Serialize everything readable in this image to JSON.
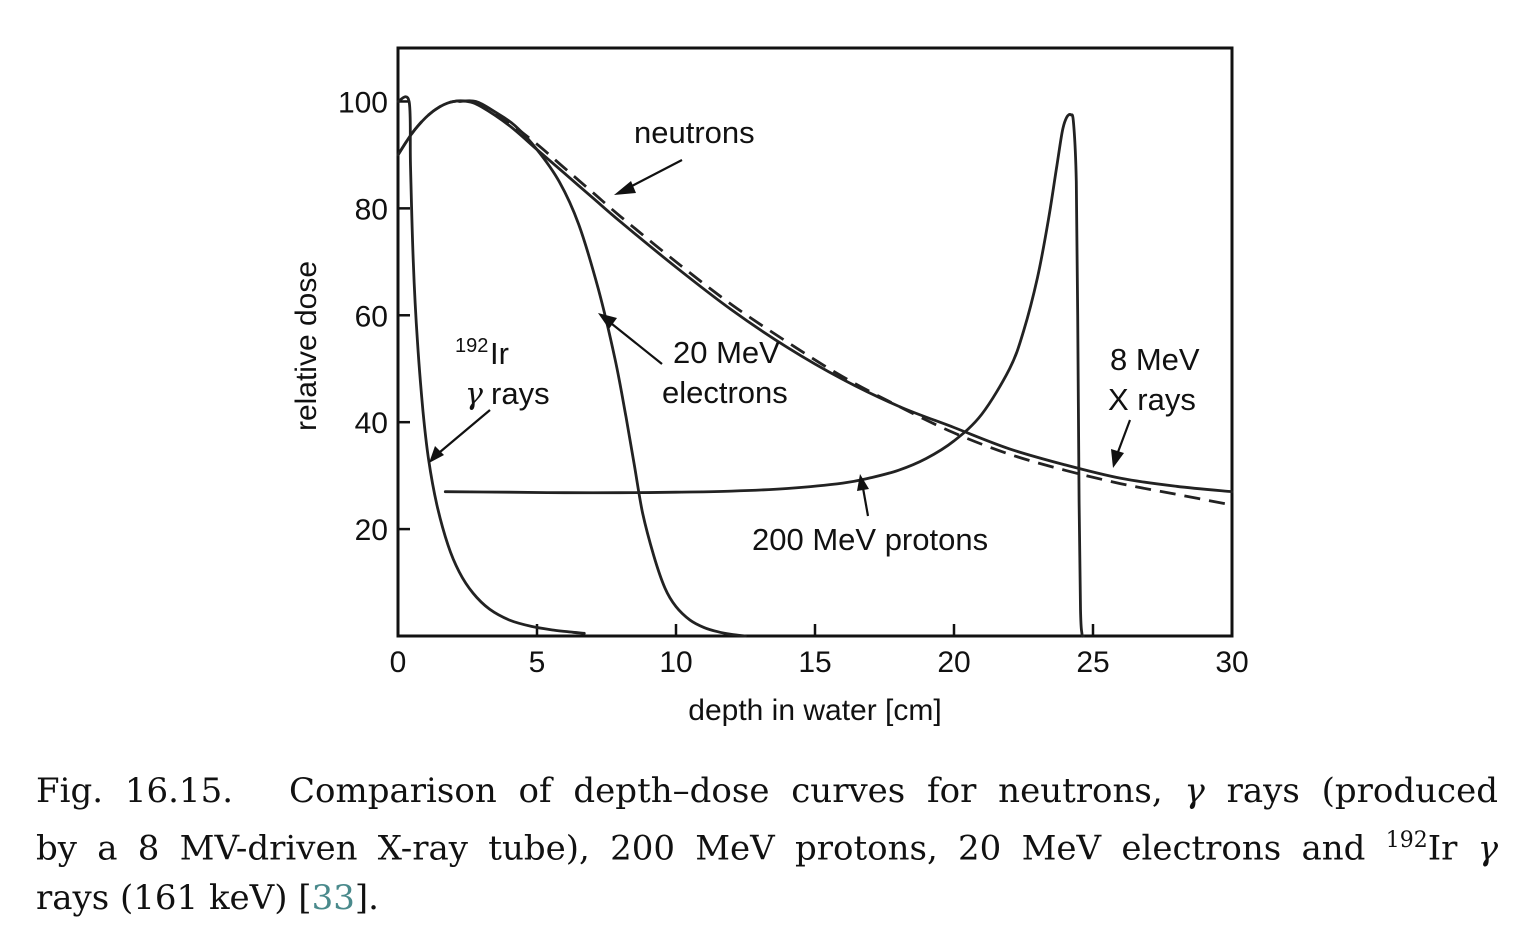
{
  "chart_data": {
    "type": "line",
    "xlabel": "depth in water [cm]",
    "ylabel": "relative dose",
    "xlim": [
      0,
      30
    ],
    "ylim": [
      0,
      110
    ],
    "x_ticks": [
      0,
      5,
      10,
      15,
      20,
      25,
      30
    ],
    "y_ticks": [
      20,
      40,
      60,
      80,
      100
    ],
    "x_tick_labels": [
      "0",
      "5",
      "10",
      "15",
      "20",
      "25",
      "30"
    ],
    "y_tick_labels": [
      "20",
      "40",
      "60",
      "80",
      "100"
    ],
    "grid": false,
    "series": [
      {
        "name": "neutrons",
        "style": "dashed",
        "x": [
          0,
          0.5,
          1,
          1.5,
          2,
          2.5,
          3,
          4,
          5,
          6,
          7,
          8,
          10,
          12,
          14,
          16,
          18,
          20,
          22,
          24,
          26,
          28,
          30
        ],
        "y": [
          90,
          94,
          97,
          99,
          100,
          100,
          99.5,
          96,
          92,
          87.5,
          83,
          78.5,
          70,
          62,
          55,
          48.5,
          43,
          38,
          34,
          31,
          28.5,
          26.5,
          24.5
        ]
      },
      {
        "name": "8 MeV X rays",
        "style": "solid",
        "x": [
          0,
          0.5,
          1,
          1.5,
          2,
          2.5,
          3,
          4,
          5,
          6,
          7,
          8,
          10,
          12,
          14,
          16,
          18,
          20,
          22,
          24,
          26,
          28,
          30
        ],
        "y": [
          90,
          94,
          97,
          99,
          100,
          100,
          99,
          95.5,
          91,
          86.5,
          82,
          77.5,
          69,
          61,
          54,
          48,
          43,
          39,
          35,
          32,
          29.5,
          28,
          27
        ]
      },
      {
        "name": "200 MeV protons",
        "style": "solid",
        "x": [
          1.7,
          4,
          6,
          8,
          10,
          12,
          14,
          16,
          17,
          18,
          19,
          20,
          21,
          22,
          22.5,
          23,
          23.4,
          23.7,
          23.9,
          24.05,
          24.2,
          24.3,
          24.4,
          24.45,
          24.5,
          24.55,
          24.6,
          24.65
        ],
        "y": [
          27,
          26.9,
          26.8,
          26.8,
          26.9,
          27.1,
          27.6,
          28.6,
          29.6,
          31,
          33.2,
          36.5,
          41.5,
          50,
          57,
          67,
          78,
          88,
          94.5,
          97,
          97.5,
          96,
          85,
          60,
          25,
          5,
          0.5,
          0
        ]
      },
      {
        "name": "20 MeV electrons",
        "style": "solid",
        "x": [
          2.2,
          2.8,
          3.5,
          4.2,
          5,
          5.8,
          6.5,
          7.2,
          7.8,
          8.2,
          8.5,
          8.8,
          9.2,
          9.6,
          10,
          10.5,
          11,
          11.5,
          12,
          12.5
        ],
        "y": [
          100,
          100,
          98,
          95.5,
          91,
          85,
          77,
          65,
          52,
          41,
          32,
          23,
          15,
          9,
          5.5,
          3,
          1.6,
          0.8,
          0.3,
          0
        ]
      },
      {
        "name": "192Ir γ rays",
        "style": "solid",
        "x": [
          0,
          0.4,
          0.45,
          0.55,
          0.7,
          0.9,
          1.1,
          1.4,
          1.8,
          2.2,
          2.7,
          3.3,
          4,
          4.8,
          5.6,
          6.3,
          6.7
        ],
        "y": [
          100,
          100,
          88,
          70,
          55,
          42,
          33,
          24.5,
          17,
          12,
          8,
          5,
          3,
          1.8,
          1.1,
          0.7,
          0.5
        ]
      }
    ],
    "annotations": {
      "neutrons": "neutrons",
      "electrons_line1": "20 MeV",
      "electrons_line2": "electrons",
      "xray_line1": "8 MeV",
      "xray_line2": "X rays",
      "protons": "200 MeV protons",
      "ir_sup": "192",
      "ir_main": "Ir",
      "ir_gamma": "γ",
      "ir_rays": "rays"
    }
  },
  "caption": {
    "line1_fig": "Fig. 16.15.",
    "line1_text": "Comparison of depth–dose curves for neutrons,",
    "line1_gamma": "γ",
    "line1_end": "rays (produced",
    "line2_start": "by a 8 MV-driven X-ray tube), 200 MeV protons, 20 MeV electrons and",
    "line2_sup": "192",
    "line2_ir": "Ir",
    "line2_gamma": "γ",
    "line3_start": "rays (161 keV) [",
    "line3_cite": "33",
    "line3_end": "]."
  }
}
